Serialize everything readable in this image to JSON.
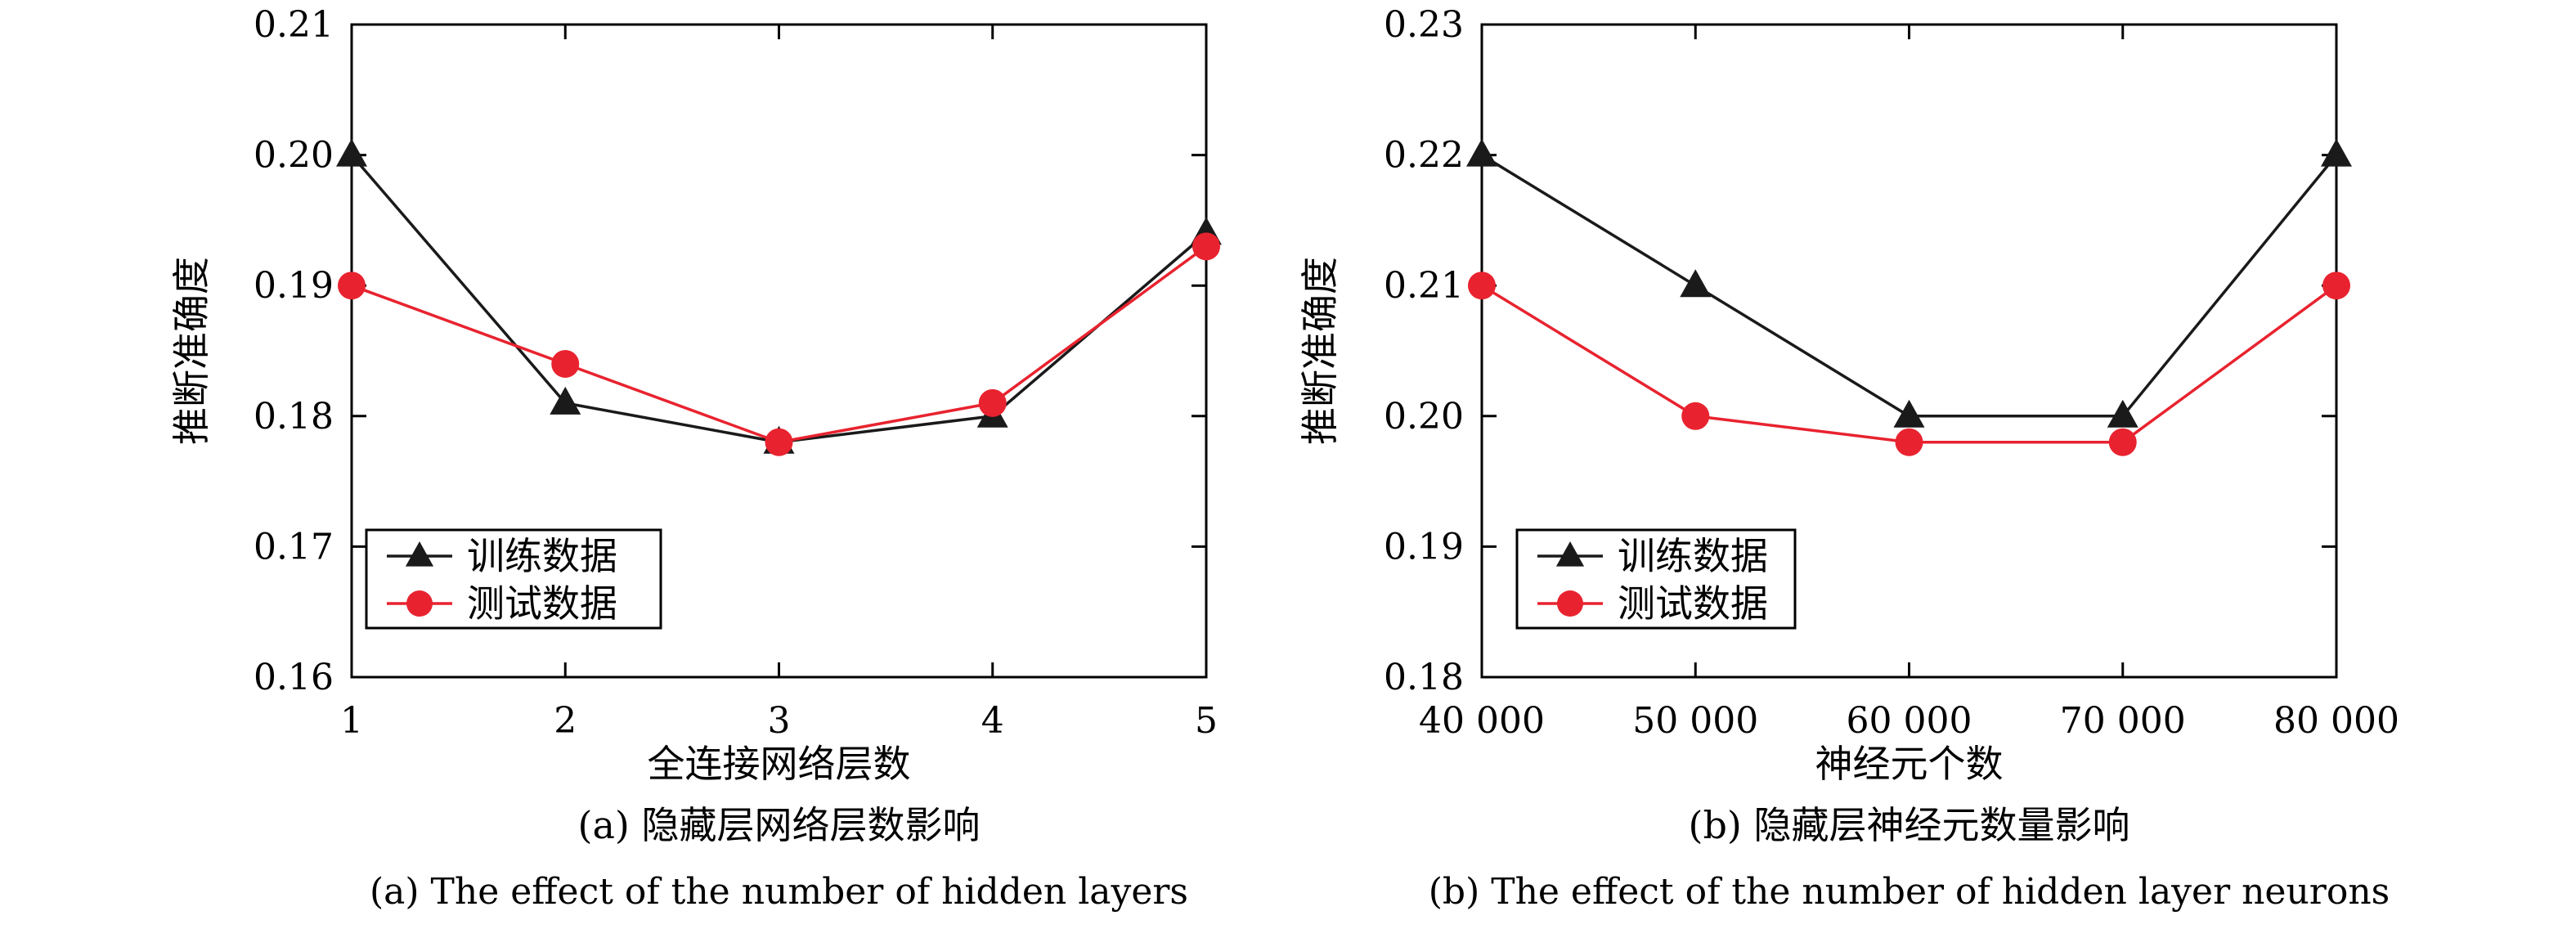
{
  "colors": {
    "train": "#1a1a1a",
    "test": "#e8232f",
    "axis": "#000000",
    "background": "#ffffff"
  },
  "chart_data": [
    {
      "type": "line",
      "panel": "a",
      "xlabel": "全连接网络层数",
      "ylabel": "推断准确度",
      "categories": [
        "1",
        "2",
        "3",
        "4",
        "5"
      ],
      "x": [
        1,
        2,
        3,
        4,
        5
      ],
      "xlim": [
        1,
        5
      ],
      "ylim": [
        0.16,
        0.21
      ],
      "yticks": [
        "0.16",
        "0.17",
        "0.18",
        "0.19",
        "0.20",
        "0.21"
      ],
      "grid": false,
      "legend_position": "bottom-left",
      "series": [
        {
          "name": "训练数据",
          "marker": "triangle",
          "color": "#1a1a1a",
          "values": [
            0.2,
            0.181,
            0.178,
            0.18,
            0.194
          ]
        },
        {
          "name": "测试数据",
          "marker": "circle",
          "color": "#e8232f",
          "values": [
            0.19,
            0.184,
            0.178,
            0.181,
            0.193
          ]
        }
      ],
      "caption": "(a) 隐藏层网络层数影响",
      "caption_en": "(a) The effect of the number of hidden layers"
    },
    {
      "type": "line",
      "panel": "b",
      "xlabel": "神经元个数",
      "ylabel": "推断准确度",
      "categories": [
        "40 000",
        "50 000",
        "60 000",
        "70 000",
        "80 000"
      ],
      "x": [
        40000,
        50000,
        60000,
        70000,
        80000
      ],
      "xlim": [
        40000,
        80000
      ],
      "ylim": [
        0.18,
        0.23
      ],
      "yticks": [
        "0.18",
        "0.19",
        "0.20",
        "0.21",
        "0.22",
        "0.23"
      ],
      "grid": false,
      "legend_position": "bottom-left",
      "series": [
        {
          "name": "训练数据",
          "marker": "triangle",
          "color": "#1a1a1a",
          "values": [
            0.22,
            0.21,
            0.2,
            0.2,
            0.22
          ]
        },
        {
          "name": "测试数据",
          "marker": "circle",
          "color": "#e8232f",
          "values": [
            0.21,
            0.2,
            0.198,
            0.198,
            0.21
          ]
        }
      ],
      "caption": "(b) 隐藏层神经元数量影响",
      "caption_en": "(b) The effect of the number of hidden layer neurons"
    }
  ]
}
